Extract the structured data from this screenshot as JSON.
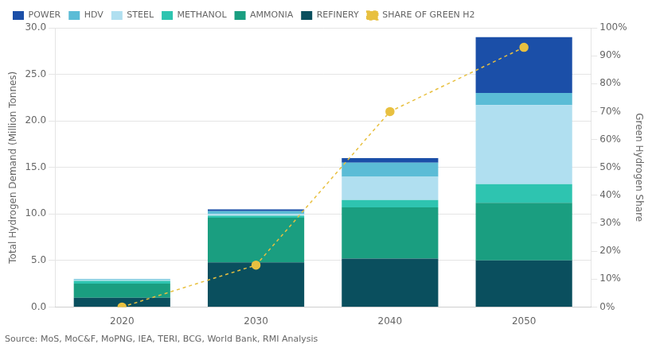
{
  "chart_data": {
    "type": "bar",
    "stacked": true,
    "categories": [
      "2020",
      "2030",
      "2040",
      "2050"
    ],
    "series": [
      {
        "name": "REFINERY",
        "color": "#0a4f5e",
        "values": [
          1.0,
          4.8,
          5.2,
          5.0
        ]
      },
      {
        "name": "AMMONIA",
        "color": "#1a9e80",
        "values": [
          1.5,
          4.8,
          5.5,
          6.2
        ]
      },
      {
        "name": "METHANOL",
        "color": "#2ec4b0",
        "values": [
          0.3,
          0.2,
          0.8,
          2.0
        ]
      },
      {
        "name": "STEEL",
        "color": "#b0dff0",
        "values": [
          0.1,
          0.2,
          2.5,
          8.5
        ]
      },
      {
        "name": "HDV",
        "color": "#5bbcd6",
        "values": [
          0.1,
          0.3,
          1.5,
          1.3
        ]
      },
      {
        "name": "POWER",
        "color": "#1b4fa8",
        "values": [
          0.0,
          0.2,
          0.5,
          6.0
        ]
      },
      {
        "name": "SHARE OF GREEN H2",
        "type": "line",
        "axis": "y2",
        "color": "#e8c040",
        "line_style": "dashed",
        "marker": "circle",
        "values": [
          0.0,
          15.0,
          70.0,
          93.0
        ]
      }
    ],
    "ylabel": "Total Hydrogen Demand (Million Tonnes)",
    "y2label": "Green Hydrogen Share",
    "ylim": [
      0,
      30
    ],
    "yticks": [
      {
        "value": 0,
        "label": "0.0"
      },
      {
        "value": 5,
        "label": "5.0"
      },
      {
        "value": 10,
        "label": "10.0"
      },
      {
        "value": 15,
        "label": "15.0"
      },
      {
        "value": 20,
        "label": "20.0"
      },
      {
        "value": 25,
        "label": "25.0"
      },
      {
        "value": 30,
        "label": "30.0"
      }
    ],
    "y2lim": [
      0,
      100
    ],
    "y2ticks": [
      {
        "value": 0,
        "label": "0%"
      },
      {
        "value": 10,
        "label": "10%"
      },
      {
        "value": 20,
        "label": "20%"
      },
      {
        "value": 30,
        "label": "30%"
      },
      {
        "value": 40,
        "label": "40%"
      },
      {
        "value": 50,
        "label": "50%"
      },
      {
        "value": 60,
        "label": "60%"
      },
      {
        "value": 70,
        "label": "70%"
      },
      {
        "value": 80,
        "label": "80%"
      },
      {
        "value": 90,
        "label": "90%"
      },
      {
        "value": 100,
        "label": "100%"
      }
    ],
    "grid": true,
    "legend": "upper left",
    "annotations": [
      "Source: MoS, MoC&F, MoPNG, IEA, TERI, BCG, World Bank, RMI Analysis"
    ]
  }
}
